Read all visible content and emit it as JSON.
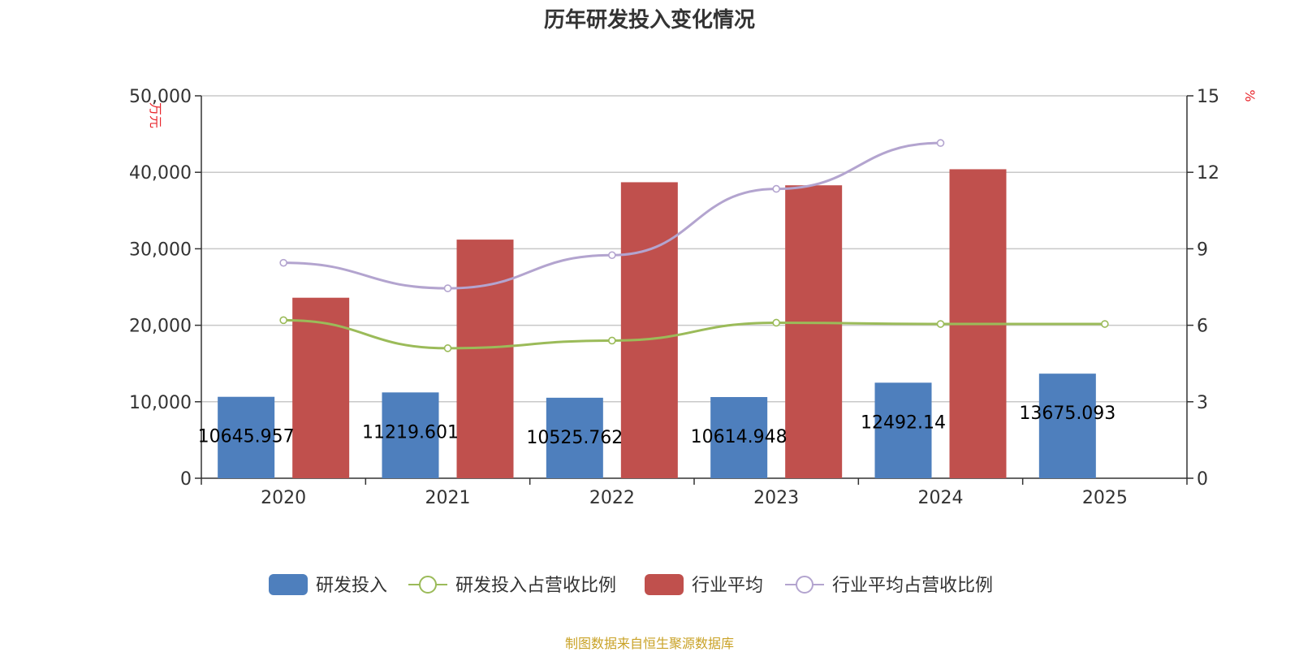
{
  "chart_data": {
    "type": "bar",
    "title": "历年研发投入变化情况",
    "source": "制图数据来自恒生聚源数据库",
    "categories": [
      "2020",
      "2021",
      "2022",
      "2023",
      "2024",
      "2025"
    ],
    "y_left": {
      "unit": "万元",
      "min": 0,
      "max": 50000,
      "ticks": [
        0,
        10000,
        20000,
        30000,
        40000,
        50000
      ],
      "tick_labels": [
        "0",
        "10,000",
        "20,000",
        "30,000",
        "40,000",
        "50,000"
      ]
    },
    "y_right": {
      "unit": "%",
      "min": 0,
      "max": 15,
      "ticks": [
        0,
        3,
        6,
        9,
        12,
        15
      ],
      "tick_labels": [
        "0",
        "3",
        "6",
        "9",
        "12",
        "15"
      ]
    },
    "grid": true,
    "legend_position": "bottom",
    "series": [
      {
        "name": "研发投入",
        "type": "bar",
        "axis": "left",
        "color": "#4e7fbd",
        "values": [
          10645.957,
          11219.601,
          10525.762,
          10614.948,
          12492.14,
          13675.093
        ],
        "labels": [
          "10645.957",
          "11219.601",
          "10525.762",
          "10614.948",
          "12492.14",
          "13675.093"
        ]
      },
      {
        "name": "研发投入占营收比例",
        "type": "line",
        "axis": "right",
        "color": "#9bbb59",
        "values": [
          6.2,
          5.1,
          5.4,
          6.1,
          6.05,
          6.05
        ]
      },
      {
        "name": "行业平均",
        "type": "bar",
        "axis": "left",
        "color": "#c0504d",
        "values": [
          23600,
          31200,
          38700,
          38300,
          40400,
          null
        ]
      },
      {
        "name": "行业平均占营收比例",
        "type": "line",
        "axis": "right",
        "color": "#b3a4cf",
        "values": [
          8.45,
          7.45,
          8.75,
          11.35,
          13.15,
          null
        ]
      }
    ]
  }
}
